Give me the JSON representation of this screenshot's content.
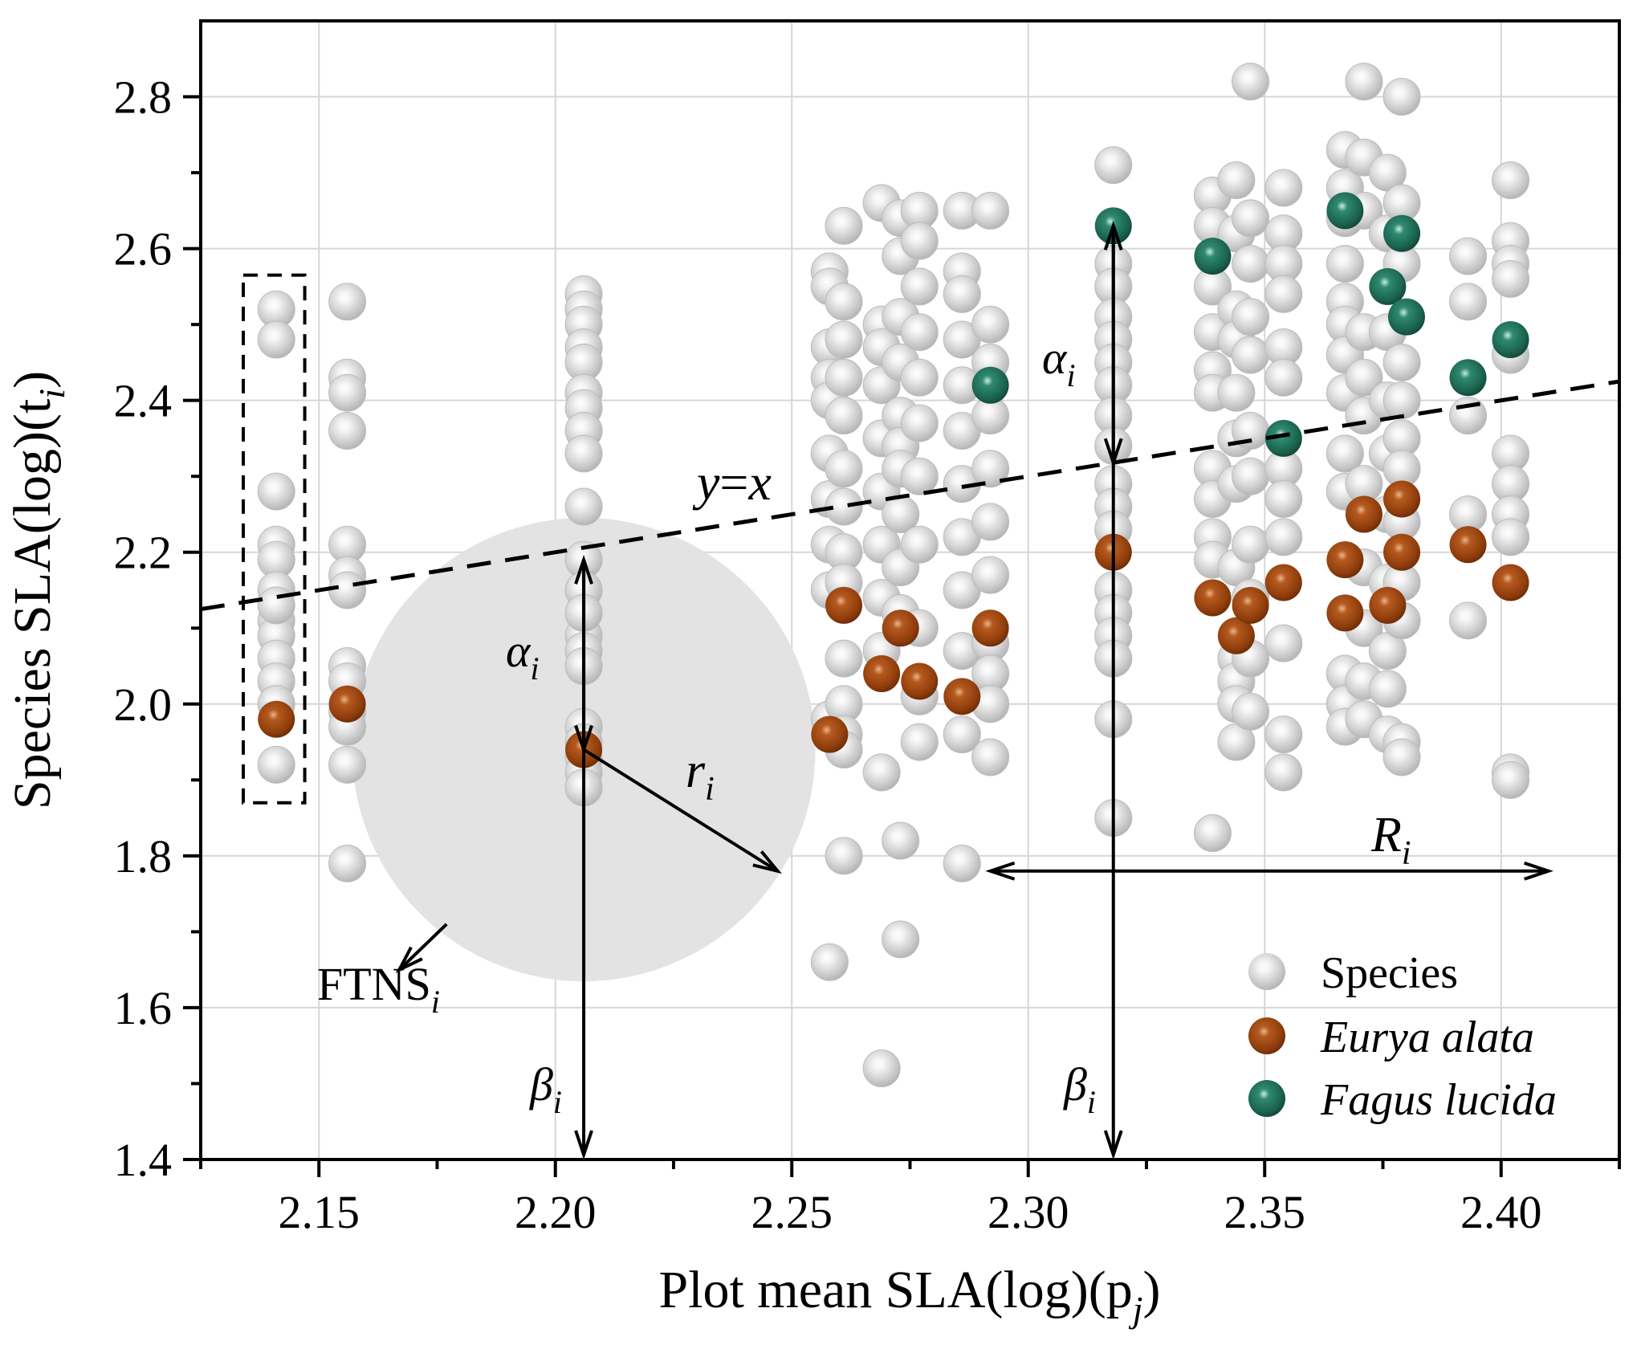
{
  "chart_data": {
    "type": "scatter",
    "xlabel": "Plot mean SLA(log)(p",
    "xlabel_sub": "j",
    "xlabel_close": ")",
    "ylabel": "Species SLA(log)(t",
    "ylabel_sub": "i",
    "ylabel_close": ")",
    "xlim": [
      2.125,
      2.425
    ],
    "ylim": [
      1.4,
      2.9
    ],
    "xticks": [
      2.15,
      2.2,
      2.25,
      2.3,
      2.35,
      2.4
    ],
    "xtick_labels": [
      "2.15",
      "2.20",
      "2.25",
      "2.30",
      "2.35",
      "2.40"
    ],
    "yticks": [
      1.4,
      1.6,
      1.8,
      2.0,
      2.2,
      2.4,
      2.6,
      2.8
    ],
    "ytick_labels": [
      "1.4",
      "1.6",
      "1.8",
      "2.0",
      "2.2",
      "2.4",
      "2.6",
      "2.8"
    ],
    "grid": true,
    "legend_position": "bottom-right",
    "colors": {
      "species": "#c8c8c8",
      "eurya": "#9a4410",
      "fagus": "#1d6b55",
      "circle": "#e3e3e3"
    },
    "series": [
      {
        "name": "Species",
        "style": "italic-none",
        "color": "#c8c8c8",
        "x": [
          2.141,
          2.141,
          2.141,
          2.141,
          2.141,
          2.141,
          2.141,
          2.141,
          2.141,
          2.141,
          2.141,
          2.141,
          2.141,
          2.156,
          2.156,
          2.156,
          2.156,
          2.156,
          2.156,
          2.156,
          2.156,
          2.156,
          2.156,
          2.156,
          2.156,
          2.156,
          2.206,
          2.206,
          2.206,
          2.206,
          2.206,
          2.206,
          2.206,
          2.206,
          2.206,
          2.206,
          2.206,
          2.206,
          2.206,
          2.206,
          2.206,
          2.206,
          2.206,
          2.206,
          2.206,
          2.206,
          2.206,
          2.258,
          2.258,
          2.258,
          2.258,
          2.258,
          2.258,
          2.258,
          2.258,
          2.258,
          2.258,
          2.258,
          2.261,
          2.261,
          2.261,
          2.261,
          2.261,
          2.261,
          2.261,
          2.261,
          2.261,
          2.261,
          2.261,
          2.261,
          2.261,
          2.261,
          2.269,
          2.269,
          2.269,
          2.269,
          2.269,
          2.269,
          2.269,
          2.269,
          2.269,
          2.269,
          2.269,
          2.273,
          2.273,
          2.273,
          2.273,
          2.273,
          2.273,
          2.273,
          2.273,
          2.273,
          2.273,
          2.273,
          2.273,
          2.277,
          2.277,
          2.277,
          2.277,
          2.277,
          2.277,
          2.277,
          2.277,
          2.277,
          2.277,
          2.277,
          2.286,
          2.286,
          2.286,
          2.286,
          2.286,
          2.286,
          2.286,
          2.286,
          2.286,
          2.286,
          2.286,
          2.286,
          2.292,
          2.292,
          2.292,
          2.292,
          2.292,
          2.292,
          2.292,
          2.292,
          2.292,
          2.292,
          2.292,
          2.318,
          2.318,
          2.318,
          2.318,
          2.318,
          2.318,
          2.318,
          2.318,
          2.318,
          2.318,
          2.318,
          2.318,
          2.318,
          2.318,
          2.318,
          2.318,
          2.318,
          2.318,
          2.339,
          2.339,
          2.339,
          2.339,
          2.339,
          2.339,
          2.339,
          2.339,
          2.339,
          2.339,
          2.339,
          2.344,
          2.344,
          2.344,
          2.344,
          2.344,
          2.344,
          2.344,
          2.344,
          2.344,
          2.344,
          2.344,
          2.344,
          2.347,
          2.347,
          2.347,
          2.347,
          2.347,
          2.347,
          2.347,
          2.347,
          2.347,
          2.347,
          2.347,
          2.354,
          2.354,
          2.354,
          2.354,
          2.354,
          2.354,
          2.354,
          2.354,
          2.354,
          2.354,
          2.354,
          2.354,
          2.367,
          2.367,
          2.367,
          2.367,
          2.367,
          2.367,
          2.367,
          2.367,
          2.367,
          2.367,
          2.367,
          2.367,
          2.367,
          2.371,
          2.371,
          2.371,
          2.371,
          2.371,
          2.371,
          2.371,
          2.371,
          2.371,
          2.371,
          2.371,
          2.376,
          2.376,
          2.376,
          2.376,
          2.376,
          2.376,
          2.376,
          2.376,
          2.376,
          2.376,
          2.379,
          2.379,
          2.379,
          2.379,
          2.379,
          2.379,
          2.379,
          2.379,
          2.379,
          2.379,
          2.379,
          2.379,
          2.393,
          2.393,
          2.393,
          2.393,
          2.393,
          2.402,
          2.402,
          2.402,
          2.402,
          2.402,
          2.402,
          2.402,
          2.402,
          2.402,
          2.402,
          2.402
        ],
        "y": [
          2.52,
          2.48,
          2.28,
          2.21,
          2.19,
          2.15,
          2.11,
          2.09,
          2.06,
          2.03,
          2.0,
          1.92,
          2.13,
          2.53,
          2.43,
          2.41,
          2.36,
          2.21,
          2.17,
          2.15,
          2.05,
          2.03,
          1.99,
          1.97,
          1.92,
          1.79,
          2.54,
          2.52,
          2.5,
          2.47,
          2.45,
          2.41,
          2.39,
          2.36,
          2.33,
          2.26,
          2.19,
          2.15,
          2.09,
          2.07,
          2.05,
          1.97,
          1.95,
          1.93,
          1.91,
          1.89,
          2.12,
          2.57,
          2.55,
          2.47,
          2.43,
          2.4,
          2.33,
          2.27,
          2.21,
          2.15,
          1.98,
          1.66,
          2.63,
          2.53,
          2.48,
          2.43,
          2.38,
          2.31,
          2.26,
          2.2,
          2.16,
          2.06,
          2.0,
          1.96,
          1.94,
          1.8,
          2.66,
          2.5,
          2.47,
          2.42,
          2.35,
          2.28,
          2.21,
          2.14,
          2.07,
          1.91,
          1.52,
          2.64,
          2.59,
          2.51,
          2.45,
          2.38,
          2.34,
          2.31,
          2.25,
          2.18,
          2.12,
          1.82,
          1.69,
          2.65,
          2.61,
          2.55,
          2.49,
          2.43,
          2.37,
          2.3,
          2.21,
          2.1,
          2.01,
          1.95,
          2.65,
          2.57,
          2.54,
          2.48,
          2.42,
          2.36,
          2.29,
          2.22,
          2.15,
          2.07,
          1.96,
          1.79,
          2.65,
          2.5,
          2.45,
          2.38,
          2.31,
          2.24,
          2.17,
          2.08,
          2.04,
          2.0,
          1.93,
          2.71,
          2.58,
          2.55,
          2.51,
          2.48,
          2.45,
          2.42,
          2.38,
          2.34,
          2.29,
          2.26,
          2.23,
          2.15,
          2.12,
          2.09,
          2.06,
          1.98,
          1.85,
          2.67,
          2.63,
          2.55,
          2.49,
          2.44,
          2.41,
          2.31,
          2.27,
          2.22,
          2.19,
          1.83,
          2.69,
          2.62,
          2.52,
          2.48,
          2.41,
          2.35,
          2.29,
          2.18,
          2.06,
          2.03,
          2.0,
          1.95,
          2.82,
          2.64,
          2.58,
          2.51,
          2.46,
          2.36,
          2.3,
          2.21,
          2.14,
          2.06,
          1.99,
          2.68,
          2.62,
          2.58,
          2.54,
          2.47,
          2.43,
          2.31,
          2.27,
          2.22,
          2.08,
          1.96,
          1.91,
          2.73,
          2.68,
          2.64,
          2.58,
          2.53,
          2.5,
          2.46,
          2.41,
          2.33,
          2.28,
          2.04,
          2.0,
          1.97,
          2.82,
          2.72,
          2.65,
          2.49,
          2.43,
          2.38,
          2.29,
          2.18,
          2.1,
          2.03,
          1.98,
          2.7,
          2.62,
          2.49,
          2.4,
          2.33,
          2.25,
          2.16,
          2.07,
          2.02,
          1.96,
          2.8,
          2.66,
          2.58,
          2.45,
          2.4,
          2.35,
          2.31,
          2.24,
          2.16,
          2.11,
          1.95,
          1.93,
          2.59,
          2.53,
          2.38,
          2.25,
          2.11,
          2.69,
          2.61,
          2.58,
          2.56,
          2.46,
          2.33,
          2.29,
          2.25,
          2.22,
          1.91,
          1.9
        ]
      },
      {
        "name": "Eurya alata",
        "style": "italic",
        "color": "#9a4410",
        "x": [
          2.141,
          2.156,
          2.206,
          2.258,
          2.261,
          2.269,
          2.273,
          2.277,
          2.286,
          2.292,
          2.318,
          2.339,
          2.344,
          2.347,
          2.354,
          2.367,
          2.367,
          2.371,
          2.376,
          2.379,
          2.379,
          2.393,
          2.402
        ],
        "y": [
          1.98,
          2.0,
          1.94,
          1.96,
          2.13,
          2.04,
          2.1,
          2.03,
          2.01,
          2.1,
          2.2,
          2.14,
          2.09,
          2.13,
          2.16,
          2.19,
          2.12,
          2.25,
          2.13,
          2.27,
          2.2,
          2.21,
          2.16
        ]
      },
      {
        "name": "Fagus lucida",
        "style": "italic",
        "color": "#1d6b55",
        "x": [
          2.292,
          2.318,
          2.339,
          2.354,
          2.367,
          2.376,
          2.379,
          2.38,
          2.393,
          2.402
        ],
        "y": [
          2.42,
          2.63,
          2.59,
          2.35,
          2.65,
          2.55,
          2.62,
          2.51,
          2.43,
          2.48
        ]
      }
    ],
    "reference_line": {
      "label_y": "y",
      "label_eq": "=",
      "label_x": "x",
      "style": "dashed"
    },
    "annotations": {
      "alpha": "α",
      "alpha_sub": "i",
      "beta": "β",
      "beta_sub": "i",
      "r": "r",
      "r_sub": "i",
      "R": "R",
      "R_sub": "i",
      "ftns": "FTNS",
      "ftns_sub": "i"
    }
  }
}
